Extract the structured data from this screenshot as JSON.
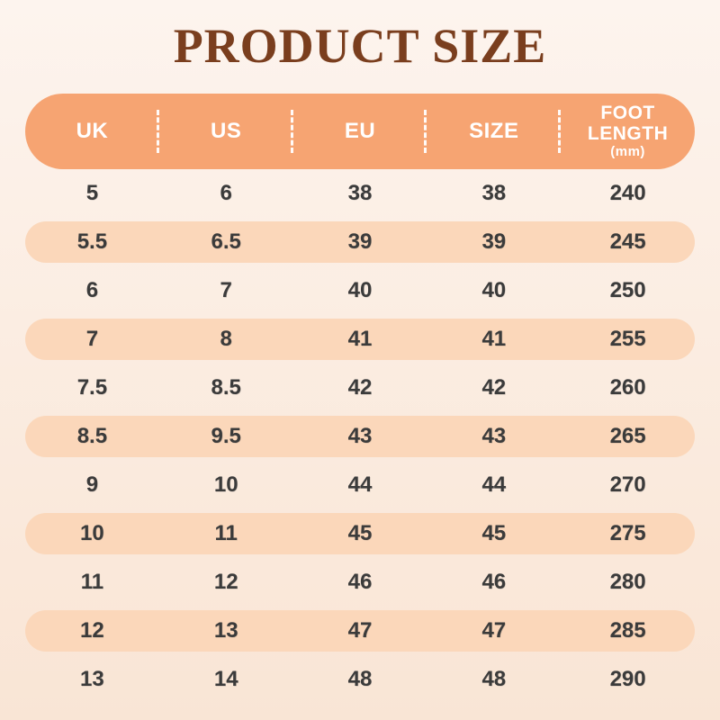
{
  "title": "PRODUCT SIZE",
  "colors": {
    "background_top": "#FDF4EE",
    "background_bottom": "#F9E5D5",
    "header_background": "#F6A472",
    "header_text": "#FFFFFF",
    "alt_row_background": "#FBD7BA",
    "data_text": "#3B3B3B",
    "title_text": "#7A3E1E"
  },
  "table": {
    "headers": [
      {
        "label": "UK"
      },
      {
        "label": "US"
      },
      {
        "label": "EU"
      },
      {
        "label": "SIZE"
      },
      {
        "label": "FOOT\nLENGTH",
        "sub": "(mm)"
      }
    ]
  },
  "chart_data": {
    "type": "table",
    "title": "PRODUCT SIZE",
    "columns": [
      "UK",
      "US",
      "EU",
      "SIZE",
      "FOOT LENGTH (mm)"
    ],
    "rows": [
      [
        "5",
        "6",
        "38",
        "38",
        "240"
      ],
      [
        "5.5",
        "6.5",
        "39",
        "39",
        "245"
      ],
      [
        "6",
        "7",
        "40",
        "40",
        "250"
      ],
      [
        "7",
        "8",
        "41",
        "41",
        "255"
      ],
      [
        "7.5",
        "8.5",
        "42",
        "42",
        "260"
      ],
      [
        "8.5",
        "9.5",
        "43",
        "43",
        "265"
      ],
      [
        "9",
        "10",
        "44",
        "44",
        "270"
      ],
      [
        "10",
        "11",
        "45",
        "45",
        "275"
      ],
      [
        "11",
        "12",
        "46",
        "46",
        "280"
      ],
      [
        "12",
        "13",
        "47",
        "47",
        "285"
      ],
      [
        "13",
        "14",
        "48",
        "48",
        "290"
      ]
    ],
    "layout": {
      "striped_rows": "even rows highlighted",
      "header_style": "pill"
    }
  }
}
